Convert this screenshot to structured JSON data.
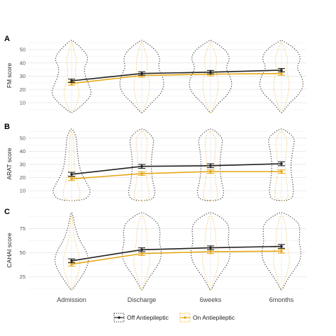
{
  "legend": [
    {
      "label": "Off Antiepileptic",
      "color": "#222222"
    },
    {
      "label": "On Antiepileptic",
      "color": "#E6A817"
    }
  ],
  "chart_data": [
    {
      "type": "line",
      "panel": "A",
      "categories": [
        "Admission",
        "Discharge",
        "6weeks",
        "6months"
      ],
      "ylabel": "FM score",
      "ylim": [
        3,
        58
      ],
      "yticks": [
        10,
        20,
        30,
        40,
        50
      ],
      "grid": true,
      "series": [
        {
          "name": "Off Antiepileptic",
          "color": "#222222",
          "values": [
            26.5,
            32,
            33,
            34.5
          ],
          "err": [
            1.3,
            1.3,
            1.3,
            1.3
          ]
        },
        {
          "name": "On Antiepileptic",
          "color": "#E6A817",
          "values": [
            24.5,
            30.5,
            31.5,
            32
          ],
          "err": [
            1.3,
            1.3,
            1.3,
            1.3
          ]
        }
      ]
    },
    {
      "type": "line",
      "panel": "B",
      "categories": [
        "Admission",
        "Discharge",
        "6weeks",
        "6months"
      ],
      "ylabel": "ARAT score",
      "ylim": [
        3,
        58
      ],
      "yticks": [
        10,
        20,
        30,
        40,
        50
      ],
      "grid": true,
      "series": [
        {
          "name": "Off Antiepileptic",
          "color": "#222222",
          "values": [
            22.5,
            28.5,
            29,
            30.5
          ],
          "err": [
            1.5,
            1.5,
            1.5,
            1.5
          ]
        },
        {
          "name": "On Antiepileptic",
          "color": "#E6A817",
          "values": [
            19,
            23,
            24.5,
            24.5
          ],
          "err": [
            1.3,
            1.3,
            1.3,
            1.3
          ]
        }
      ]
    },
    {
      "type": "line",
      "panel": "C",
      "categories": [
        "Admission",
        "Discharge",
        "6weeks",
        "6months"
      ],
      "ylabel": "CAHAI score",
      "ylim": [
        12,
        93
      ],
      "yticks": [
        25,
        50,
        75
      ],
      "grid": true,
      "series": [
        {
          "name": "Off Antiepileptic",
          "color": "#222222",
          "values": [
            41.5,
            53,
            55,
            56.5
          ],
          "err": [
            2,
            2,
            2,
            2
          ]
        },
        {
          "name": "On Antiepileptic",
          "color": "#E6A817",
          "values": [
            38,
            49,
            51,
            51.5
          ],
          "err": [
            2,
            2,
            2,
            2
          ]
        }
      ]
    }
  ]
}
